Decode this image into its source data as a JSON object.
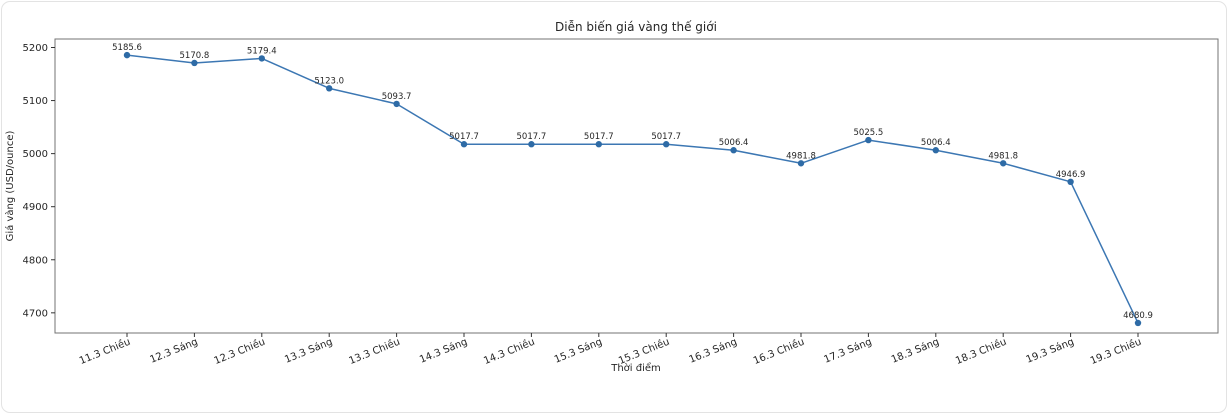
{
  "window": {
    "background": "#ffffff",
    "frame_border_color": "#e3e3e3"
  },
  "chart_data": {
    "type": "line",
    "title": "Diễn biến giá vàng thế giới",
    "xlabel": "Thời điểm",
    "ylabel": "Giá vàng (USD/ounce)",
    "categories": [
      "11.3 Chiều",
      "12.3 Sáng",
      "12.3 Chiều",
      "13.3 Sáng",
      "13.3 Chiều",
      "14.3 Sáng",
      "14.3 Chiều",
      "15.3 Sáng",
      "15.3 Chiều",
      "16.3 Sáng",
      "16.3 Chiều",
      "17.3 Sáng",
      "18.3 Sáng",
      "18.3 Chiều",
      "19.3 Sáng",
      "19.3 Chiều"
    ],
    "series": [
      {
        "name": "Giá vàng",
        "values": [
          5185.6,
          5170.8,
          5179.4,
          5123.0,
          5093.7,
          5017.7,
          5017.7,
          5017.7,
          5017.7,
          5006.4,
          4981.8,
          5025.5,
          5006.4,
          4981.8,
          4946.9,
          4680.9
        ],
        "point_labels": [
          "5185.6",
          "5170.8",
          "5179.4",
          "5123.0",
          "5093.7",
          "5017.7",
          "5017.7",
          "5017.7",
          "5017.7",
          "5006.4",
          "4981.8",
          "5025.5",
          "5006.4",
          "4981.8",
          "4946.9",
          "4680.9"
        ]
      }
    ],
    "yticks": [
      4700,
      4800,
      4900,
      5000,
      5100,
      5200
    ],
    "ytick_labels": [
      "4700",
      "4800",
      "4900",
      "5000",
      "5100",
      "5200"
    ],
    "ylim": [
      4662,
      5216
    ],
    "x_tick_rotation_deg": 22,
    "grid": false,
    "legend_position": "none",
    "colors": {
      "line": "#3c77b3",
      "marker": "#2e6ba6",
      "spine": "#737373",
      "tick": "#333333",
      "text": "#262626"
    }
  }
}
